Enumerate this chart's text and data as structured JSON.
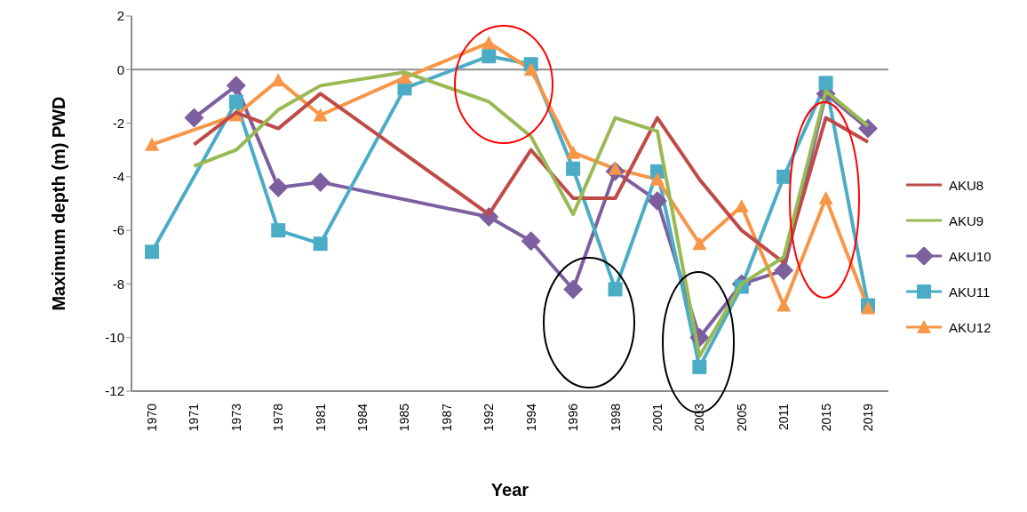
{
  "chart_data": {
    "type": "line",
    "xlabel": "Year",
    "ylabel": "Maximum depth (m) PWD",
    "categories": [
      "1970",
      "1971",
      "1973",
      "1978",
      "1981",
      "1984",
      "1985",
      "1987",
      "1992",
      "1994",
      "1996",
      "1998",
      "2001",
      "2003",
      "2005",
      "2011",
      "2015",
      "2019"
    ],
    "series": [
      {
        "name": "AKU8",
        "color": "#be4b48",
        "marker": "none",
        "values": [
          null,
          -2.8,
          -1.6,
          -2.2,
          -0.9,
          null,
          null,
          null,
          -5.4,
          -3.0,
          -4.8,
          -4.8,
          -1.8,
          -4.1,
          -6.0,
          -7.2,
          -1.8,
          -2.7
        ]
      },
      {
        "name": "AKU9",
        "color": "#98b954",
        "marker": "none",
        "values": [
          null,
          -3.6,
          -3.0,
          -1.5,
          -0.6,
          null,
          -0.1,
          null,
          -1.2,
          -2.5,
          -5.4,
          -1.8,
          -2.3,
          -10.7,
          -8.0,
          -7.0,
          -0.8,
          -2.1
        ]
      },
      {
        "name": "AKU10",
        "color": "#7d5fa0",
        "marker": "diamond",
        "values": [
          null,
          -1.8,
          -0.6,
          -4.4,
          -4.2,
          null,
          null,
          null,
          -5.5,
          -6.4,
          -8.2,
          -3.8,
          -4.9,
          -10.0,
          -8.0,
          -7.5,
          -0.9,
          -2.2
        ]
      },
      {
        "name": "AKU11",
        "color": "#4bacc6",
        "marker": "square",
        "values": [
          -6.8,
          null,
          -1.2,
          -6.0,
          -6.5,
          null,
          -0.7,
          null,
          0.5,
          0.2,
          -3.7,
          -8.2,
          -3.8,
          -11.1,
          -8.1,
          -4.0,
          -0.5,
          -8.8
        ]
      },
      {
        "name": "AKU12",
        "color": "#f79646",
        "marker": "triangle",
        "values": [
          -2.8,
          null,
          -1.7,
          -0.4,
          -1.7,
          null,
          -0.3,
          null,
          1.0,
          0.0,
          -3.1,
          -3.7,
          -4.1,
          -6.5,
          -5.1,
          -8.8,
          -4.8,
          -8.9
        ]
      }
    ],
    "ylim": [
      -12,
      2
    ],
    "yticks": [
      -12,
      -10,
      -8,
      -6,
      -4,
      -2,
      0,
      2
    ],
    "grid": false,
    "legend": "right",
    "ref_lines": [
      {
        "axis": "y",
        "value": 0,
        "color": "#8c8c8c"
      }
    ]
  }
}
